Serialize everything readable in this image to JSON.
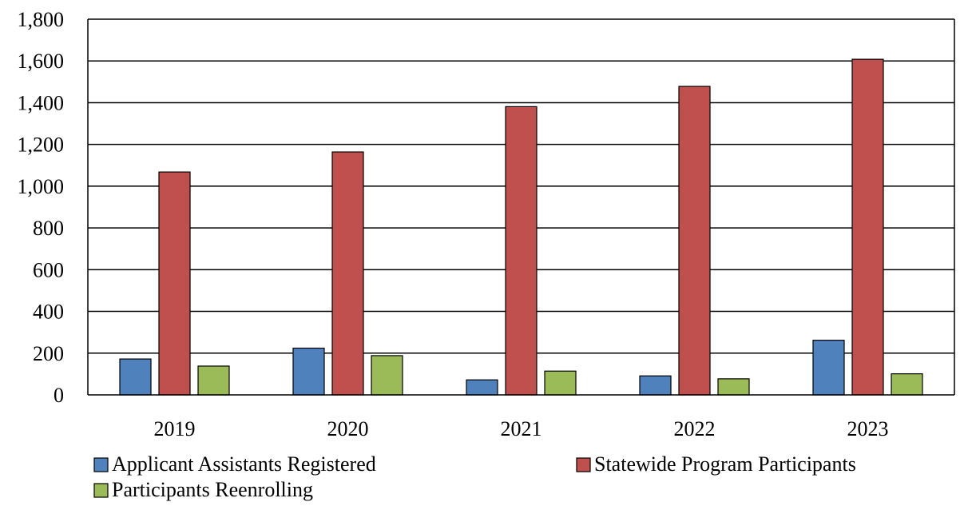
{
  "chart_data": {
    "type": "bar",
    "title": "",
    "xlabel": "",
    "ylabel": "",
    "categories": [
      "2019",
      "2020",
      "2021",
      "2022",
      "2023"
    ],
    "series": [
      {
        "name": "Applicant Assistants Registered",
        "color": "#4f81bd",
        "values": [
          172,
          224,
          72,
          91,
          262
        ]
      },
      {
        "name": "Statewide Program Participants",
        "color": "#c0504d",
        "values": [
          1068,
          1164,
          1381,
          1478,
          1608
        ]
      },
      {
        "name": "Participants Reenrolling",
        "color": "#9bbb59",
        "values": [
          138,
          188,
          114,
          77,
          101
        ]
      }
    ],
    "ylim": [
      0,
      1800
    ],
    "ytick_values": [
      0,
      200,
      400,
      600,
      800,
      1000,
      1200,
      1400,
      1600,
      1800
    ],
    "ytick_labels": [
      "0",
      "200",
      "400",
      "600",
      "800",
      "1,000",
      "1,200",
      "1,400",
      "1,600",
      "1,800"
    ],
    "grid": true,
    "legend_position": "bottom"
  }
}
